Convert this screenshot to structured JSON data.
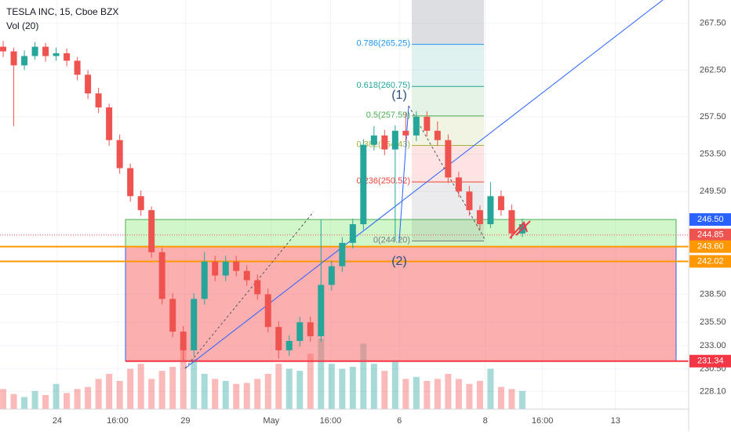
{
  "header": {
    "symbol": "TESLA INC, 15, Cboe BZX",
    "indicator": "Vol (20)"
  },
  "chart_data": {
    "type": "candlestick",
    "xlim": [
      -0.3,
      64.7
    ],
    "xticks": [
      {
        "value": 5.1,
        "label": "24"
      },
      {
        "value": 10.8,
        "label": "16:00"
      },
      {
        "value": 17.2,
        "label": "29"
      },
      {
        "value": 25.3,
        "label": "May"
      },
      {
        "value": 30.9,
        "label": "16:00"
      },
      {
        "value": 37.4,
        "label": "6"
      },
      {
        "value": 45.5,
        "label": "8"
      },
      {
        "value": 50.9,
        "label": "16:00"
      },
      {
        "value": 57.8,
        "label": "13"
      }
    ],
    "ylim": [
      226.2,
      270
    ],
    "yticks": [
      {
        "value": 267.5,
        "label": "267.50"
      },
      {
        "value": 262.5,
        "label": "262.50"
      },
      {
        "value": 257.5,
        "label": "257.50"
      },
      {
        "value": 253.5,
        "label": "253.50"
      },
      {
        "value": 249.5,
        "label": "249.50"
      },
      {
        "value": 238.5,
        "label": "238.50"
      },
      {
        "value": 235.5,
        "label": "235.50"
      },
      {
        "value": 233,
        "label": "233.00"
      },
      {
        "value": 230.5,
        "label": "230.50"
      },
      {
        "value": 228.1,
        "label": "228.10"
      }
    ],
    "grid": true,
    "up_color": "#26a69a",
    "down_color": "#ef5350",
    "open": [
      265,
      264.5,
      263,
      264,
      265,
      264,
      264.3,
      263.5,
      262,
      260,
      258.5,
      255,
      252,
      249,
      247.5,
      243,
      238,
      234.5,
      232.5,
      238,
      242,
      240.5,
      242,
      241,
      240,
      238.5,
      235,
      232.5,
      233.5,
      235.5,
      234,
      239.5,
      241.5,
      244,
      246,
      254.5,
      255.5,
      254,
      256,
      255.5,
      257.5,
      256,
      255,
      251,
      249.5,
      247.5,
      246,
      249,
      247.5,
      245
    ],
    "high": [
      265.6,
      264.9,
      264.6,
      265.5,
      265.4,
      264.9,
      264.8,
      263.9,
      262.5,
      260.6,
      258.9,
      255.6,
      252.5,
      249.6,
      247.9,
      243.5,
      238.6,
      235.1,
      238.6,
      243,
      242.6,
      242.6,
      242.6,
      241.6,
      240.6,
      239.1,
      235.6,
      234.1,
      236.1,
      236.1,
      246.5,
      242.1,
      244.6,
      246.6,
      255.1,
      256.5,
      256.1,
      256.6,
      258,
      258.1,
      258.1,
      257,
      255.6,
      251.6,
      250.1,
      248,
      250.5,
      249.6,
      248.1,
      246.6
    ],
    "low": [
      263.9,
      256.5,
      262.5,
      263.6,
      263.4,
      263.5,
      262.9,
      261.4,
      259.4,
      257.9,
      254.4,
      251.4,
      248.4,
      246.9,
      242.4,
      237.4,
      233.9,
      231.3,
      231.9,
      237.4,
      239.9,
      239.9,
      240.4,
      239.4,
      237.9,
      234.4,
      231.6,
      231.9,
      232.9,
      233.4,
      233.4,
      238.9,
      240.9,
      243.4,
      245.4,
      253.9,
      253.4,
      244.2,
      254.9,
      254.9,
      255.4,
      254.4,
      250.4,
      248.9,
      246.9,
      245.4,
      245.6,
      246.9,
      244.4,
      244.6
    ],
    "close": [
      264.5,
      263,
      264,
      265,
      264,
      264.3,
      263.5,
      262,
      260,
      258.5,
      255,
      252,
      249,
      247.5,
      243,
      238,
      234.5,
      232.5,
      238,
      242,
      240.5,
      242,
      241,
      240,
      238.5,
      235,
      232.5,
      233.5,
      235.5,
      234,
      239.5,
      241.5,
      244,
      246,
      254.5,
      255.5,
      254,
      256,
      255.5,
      257.5,
      256,
      255,
      251,
      249.5,
      247.5,
      246,
      249,
      247.5,
      245,
      246
    ],
    "volume": [
      20,
      15,
      12,
      18,
      14,
      25,
      16,
      20,
      22,
      30,
      35,
      28,
      40,
      45,
      30,
      38,
      42,
      60,
      50,
      35,
      30,
      28,
      25,
      26,
      30,
      35,
      45,
      40,
      38,
      55,
      70,
      45,
      40,
      42,
      65,
      45,
      38,
      48,
      30,
      32,
      28,
      30,
      35,
      30,
      25,
      28,
      40,
      22,
      20,
      18
    ],
    "price_tags": [
      {
        "value": 246.5,
        "label": "246.50",
        "color": "#2962ff"
      },
      {
        "value": 244.85,
        "label": "244.85",
        "color": "#ef5350"
      },
      {
        "value": 243.6,
        "label": "243.60",
        "color": "#ff9800"
      },
      {
        "value": 242.02,
        "label": "242.02",
        "color": "#ff9800"
      },
      {
        "value": 231.34,
        "label": "231.34",
        "color": "#f23645"
      }
    ],
    "fib_levels": [
      {
        "value": 265.25,
        "label": "0.786(265.25)",
        "color": "#2196f3"
      },
      {
        "value": 260.75,
        "label": "0.618(260.75)",
        "color": "#26a69a"
      },
      {
        "value": 257.59,
        "label": "0.5(257.59)",
        "color": "#4caf50"
      },
      {
        "value": 254.43,
        "label": "0.382(254.43)",
        "color": "#a4b33a"
      },
      {
        "value": 250.52,
        "label": "0.236(250.52)",
        "color": "#f44336"
      },
      {
        "value": 244.2,
        "label": "0(244.20)",
        "color": "#787b86"
      }
    ],
    "wave_labels": [
      "(1)",
      "(2)"
    ]
  }
}
